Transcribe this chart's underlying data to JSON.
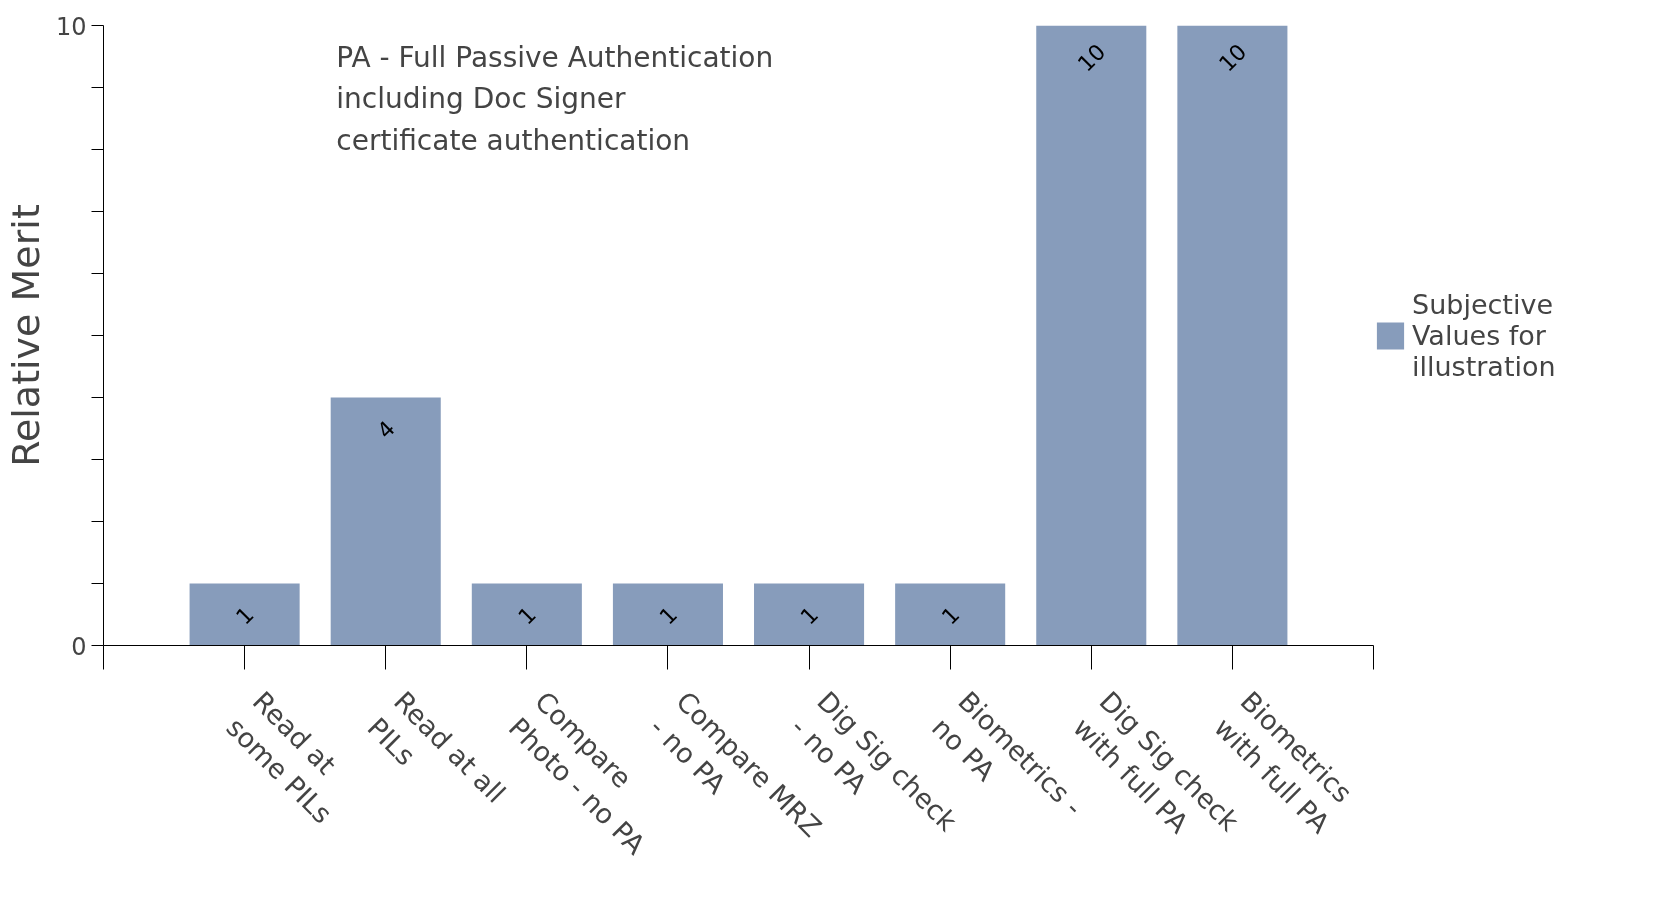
{
  "chart_data": {
    "type": "bar",
    "ylabel": "Relative Merit",
    "categories": [
      "Read at\nsome PILs",
      "Read at all\nPILs",
      "Compare\nPhoto - no PA",
      "Compare MRZ\n- no PA",
      "Dig Sig check\n- no PA",
      "Biometrics -\nno PA",
      "Dig Sig check\nwith full PA",
      "Biometrics\nwith full PA"
    ],
    "series": [
      {
        "name": "Subjective Values for illustration",
        "color": "#879cbb",
        "values": [
          1,
          4,
          1,
          1,
          1,
          1,
          10,
          10
        ]
      }
    ],
    "ylim": [
      0,
      10
    ],
    "yticks": [
      0,
      {
        "value": 1,
        "label": null
      },
      {
        "value": 2,
        "label": null
      },
      {
        "value": 3,
        "label": null
      },
      {
        "value": 4,
        "label": null
      },
      {
        "value": 5,
        "label": null
      },
      {
        "value": 6,
        "label": null
      },
      {
        "value": 7,
        "label": null
      },
      {
        "value": 8,
        "label": null
      },
      {
        "value": 9,
        "label": null
      },
      10
    ],
    "data_labels": true,
    "legend": "right",
    "annotations": [
      "PA - Full Passive Authentication including Doc Signer certificate authentication"
    ]
  }
}
